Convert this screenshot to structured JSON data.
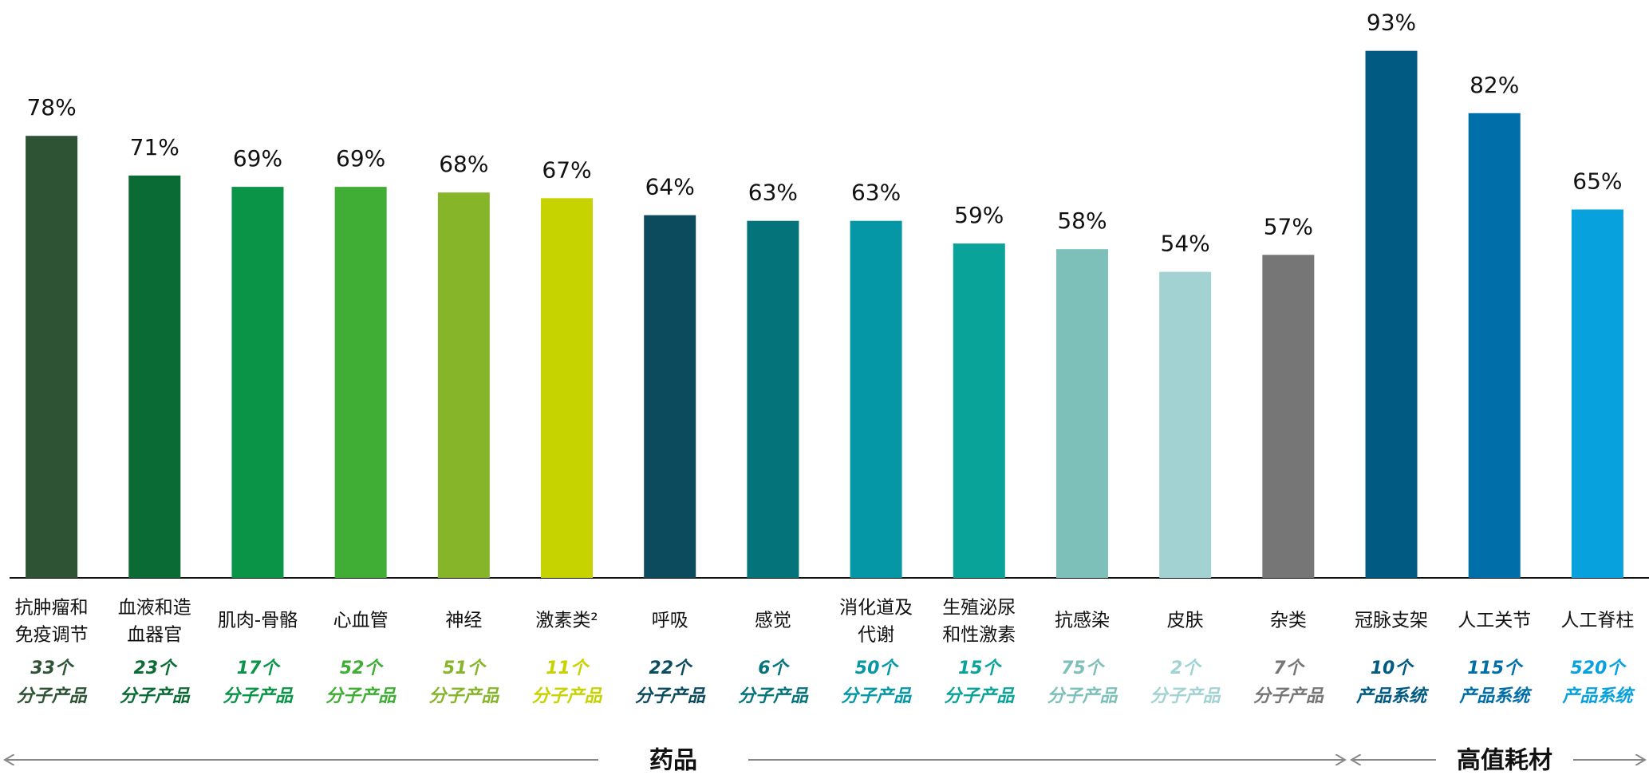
{
  "chart_data": {
    "type": "bar",
    "categories": [
      [
        "抗肿瘤和",
        "免疫调节"
      ],
      [
        "血液和造",
        "血器官"
      ],
      [
        "肌肉-骨骼"
      ],
      [
        "心血管"
      ],
      [
        "神经"
      ],
      [
        "激素类²"
      ],
      [
        "呼吸"
      ],
      [
        "感觉"
      ],
      [
        "消化道及",
        "代谢"
      ],
      [
        "生殖泌尿",
        "和性激素"
      ],
      [
        "抗感染"
      ],
      [
        "皮肤"
      ],
      [
        "杂类"
      ],
      [
        "冠脉支架"
      ],
      [
        "人工关节"
      ],
      [
        "人工脊柱"
      ]
    ],
    "values": [
      78,
      71,
      69,
      69,
      68,
      67,
      64,
      63,
      63,
      59,
      58,
      54,
      57,
      93,
      82,
      65
    ],
    "value_labels": [
      "78%",
      "71%",
      "69%",
      "69%",
      "68%",
      "67%",
      "64%",
      "63%",
      "63%",
      "59%",
      "58%",
      "54%",
      "57%",
      "93%",
      "82%",
      "65%"
    ],
    "colors": [
      "#2d5234",
      "#0b6b35",
      "#0a9447",
      "#40ad34",
      "#86b52a",
      "#c7d300",
      "#0c4a5e",
      "#05737a",
      "#0597a6",
      "#0aa39a",
      "#7dbfb9",
      "#a3d2d3",
      "#767676",
      "#005a82",
      "#006ea8",
      "#07a1dd"
    ],
    "notes": [
      [
        "33个",
        "分子产品"
      ],
      [
        "23个",
        "分子产品"
      ],
      [
        "17个",
        "分子产品"
      ],
      [
        "52个",
        "分子产品"
      ],
      [
        "51个",
        "分子产品"
      ],
      [
        "11个",
        "分子产品"
      ],
      [
        "22个",
        "分子产品"
      ],
      [
        "6个",
        "分子产品"
      ],
      [
        "50个",
        "分子产品"
      ],
      [
        "15个",
        "分子产品"
      ],
      [
        "75个",
        "分子产品"
      ],
      [
        "2个",
        "分子产品"
      ],
      [
        "7个",
        "分子产品"
      ],
      [
        "10个",
        "产品系统"
      ],
      [
        "115个",
        "产品系统"
      ],
      [
        "520个",
        "产品系统"
      ]
    ],
    "groups": [
      "药品",
      "高值耗材"
    ],
    "ylim": [
      0,
      100
    ]
  }
}
